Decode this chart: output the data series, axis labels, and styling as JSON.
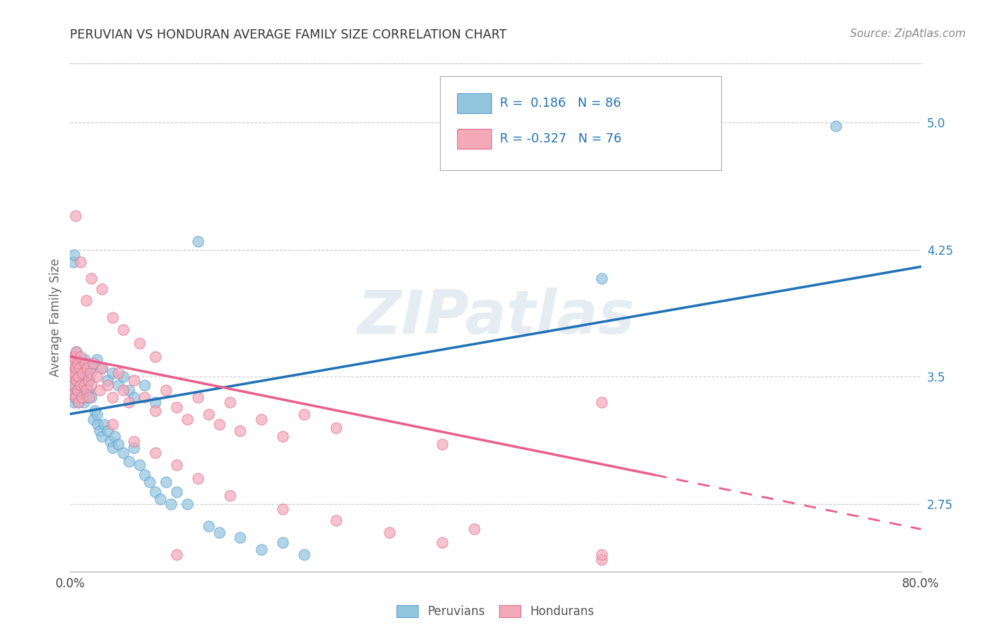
{
  "title": "PERUVIAN VS HONDURAN AVERAGE FAMILY SIZE CORRELATION CHART",
  "source": "Source: ZipAtlas.com",
  "ylabel": "Average Family Size",
  "yticks": [
    2.75,
    3.5,
    4.25,
    5.0
  ],
  "xlim": [
    0.0,
    0.8
  ],
  "ylim": [
    2.35,
    5.35
  ],
  "blue_color": "#92c5de",
  "blue_edge": "#5b9bd5",
  "pink_color": "#f4a9b8",
  "pink_edge": "#e07090",
  "watermark": "ZIPatlas",
  "blue_scatter": [
    [
      0.001,
      3.46
    ],
    [
      0.001,
      3.52
    ],
    [
      0.002,
      3.42
    ],
    [
      0.002,
      3.55
    ],
    [
      0.002,
      3.38
    ],
    [
      0.003,
      3.48
    ],
    [
      0.003,
      3.44
    ],
    [
      0.003,
      3.6
    ],
    [
      0.004,
      3.5
    ],
    [
      0.004,
      3.35
    ],
    [
      0.004,
      3.62
    ],
    [
      0.005,
      3.45
    ],
    [
      0.005,
      3.55
    ],
    [
      0.005,
      3.4
    ],
    [
      0.006,
      3.52
    ],
    [
      0.006,
      3.38
    ],
    [
      0.006,
      3.65
    ],
    [
      0.007,
      3.48
    ],
    [
      0.007,
      3.42
    ],
    [
      0.008,
      3.55
    ],
    [
      0.008,
      3.35
    ],
    [
      0.009,
      3.5
    ],
    [
      0.009,
      3.4
    ],
    [
      0.01,
      3.45
    ],
    [
      0.01,
      3.58
    ],
    [
      0.011,
      3.38
    ],
    [
      0.011,
      3.52
    ],
    [
      0.012,
      3.48
    ],
    [
      0.012,
      3.42
    ],
    [
      0.013,
      3.55
    ],
    [
      0.013,
      3.35
    ],
    [
      0.014,
      3.6
    ],
    [
      0.015,
      3.45
    ],
    [
      0.015,
      3.38
    ],
    [
      0.016,
      3.52
    ],
    [
      0.017,
      3.42
    ],
    [
      0.018,
      3.48
    ],
    [
      0.019,
      3.55
    ],
    [
      0.02,
      3.38
    ],
    [
      0.022,
      3.25
    ],
    [
      0.023,
      3.3
    ],
    [
      0.025,
      3.28
    ],
    [
      0.026,
      3.22
    ],
    [
      0.028,
      3.18
    ],
    [
      0.03,
      3.15
    ],
    [
      0.032,
      3.22
    ],
    [
      0.035,
      3.18
    ],
    [
      0.038,
      3.12
    ],
    [
      0.04,
      3.08
    ],
    [
      0.042,
      3.15
    ],
    [
      0.045,
      3.1
    ],
    [
      0.05,
      3.05
    ],
    [
      0.055,
      3.0
    ],
    [
      0.06,
      3.08
    ],
    [
      0.065,
      2.98
    ],
    [
      0.07,
      2.92
    ],
    [
      0.075,
      2.88
    ],
    [
      0.08,
      2.82
    ],
    [
      0.085,
      2.78
    ],
    [
      0.09,
      2.88
    ],
    [
      0.095,
      2.75
    ],
    [
      0.1,
      2.82
    ],
    [
      0.11,
      2.75
    ],
    [
      0.025,
      3.6
    ],
    [
      0.03,
      3.55
    ],
    [
      0.035,
      3.48
    ],
    [
      0.04,
      3.52
    ],
    [
      0.045,
      3.45
    ],
    [
      0.05,
      3.5
    ],
    [
      0.055,
      3.42
    ],
    [
      0.06,
      3.38
    ],
    [
      0.07,
      3.45
    ],
    [
      0.08,
      3.35
    ],
    [
      0.003,
      4.18
    ],
    [
      0.004,
      4.22
    ],
    [
      0.12,
      4.3
    ],
    [
      0.5,
      4.08
    ],
    [
      0.72,
      4.98
    ],
    [
      0.16,
      2.55
    ],
    [
      0.18,
      2.48
    ],
    [
      0.2,
      2.52
    ],
    [
      0.22,
      2.45
    ],
    [
      0.13,
      2.62
    ],
    [
      0.14,
      2.58
    ]
  ],
  "pink_scatter": [
    [
      0.002,
      3.5
    ],
    [
      0.002,
      3.58
    ],
    [
      0.003,
      3.45
    ],
    [
      0.003,
      3.62
    ],
    [
      0.004,
      3.52
    ],
    [
      0.004,
      3.4
    ],
    [
      0.005,
      3.55
    ],
    [
      0.005,
      3.38
    ],
    [
      0.006,
      3.48
    ],
    [
      0.006,
      3.65
    ],
    [
      0.007,
      3.42
    ],
    [
      0.007,
      3.58
    ],
    [
      0.008,
      3.5
    ],
    [
      0.008,
      3.35
    ],
    [
      0.009,
      3.55
    ],
    [
      0.01,
      3.45
    ],
    [
      0.01,
      3.62
    ],
    [
      0.011,
      3.38
    ],
    [
      0.012,
      3.52
    ],
    [
      0.013,
      3.45
    ],
    [
      0.014,
      3.58
    ],
    [
      0.015,
      3.42
    ],
    [
      0.016,
      3.55
    ],
    [
      0.017,
      3.48
    ],
    [
      0.018,
      3.38
    ],
    [
      0.019,
      3.52
    ],
    [
      0.02,
      3.45
    ],
    [
      0.022,
      3.58
    ],
    [
      0.025,
      3.5
    ],
    [
      0.028,
      3.42
    ],
    [
      0.03,
      3.55
    ],
    [
      0.035,
      3.45
    ],
    [
      0.04,
      3.38
    ],
    [
      0.045,
      3.52
    ],
    [
      0.05,
      3.42
    ],
    [
      0.055,
      3.35
    ],
    [
      0.06,
      3.48
    ],
    [
      0.07,
      3.38
    ],
    [
      0.08,
      3.3
    ],
    [
      0.09,
      3.42
    ],
    [
      0.1,
      3.32
    ],
    [
      0.11,
      3.25
    ],
    [
      0.12,
      3.38
    ],
    [
      0.13,
      3.28
    ],
    [
      0.14,
      3.22
    ],
    [
      0.15,
      3.35
    ],
    [
      0.16,
      3.18
    ],
    [
      0.18,
      3.25
    ],
    [
      0.2,
      3.15
    ],
    [
      0.22,
      3.28
    ],
    [
      0.005,
      4.45
    ],
    [
      0.01,
      4.18
    ],
    [
      0.02,
      4.08
    ],
    [
      0.03,
      4.02
    ],
    [
      0.015,
      3.95
    ],
    [
      0.04,
      3.85
    ],
    [
      0.05,
      3.78
    ],
    [
      0.065,
      3.7
    ],
    [
      0.08,
      3.62
    ],
    [
      0.04,
      3.22
    ],
    [
      0.06,
      3.12
    ],
    [
      0.08,
      3.05
    ],
    [
      0.1,
      2.98
    ],
    [
      0.12,
      2.9
    ],
    [
      0.15,
      2.8
    ],
    [
      0.2,
      2.72
    ],
    [
      0.25,
      2.65
    ],
    [
      0.3,
      2.58
    ],
    [
      0.35,
      2.52
    ],
    [
      0.25,
      3.2
    ],
    [
      0.35,
      3.1
    ],
    [
      0.5,
      2.42
    ],
    [
      0.5,
      2.45
    ],
    [
      0.38,
      2.6
    ],
    [
      0.5,
      3.35
    ],
    [
      0.1,
      2.45
    ]
  ],
  "blue_line": {
    "x0": 0.0,
    "y0": 3.28,
    "x1": 0.8,
    "y1": 4.15
  },
  "pink_line": {
    "x0": 0.0,
    "y0": 3.62,
    "x1": 0.55,
    "y1": 2.92
  },
  "pink_line_dash": {
    "x0": 0.55,
    "y0": 2.92,
    "x1": 0.8,
    "y1": 2.6
  }
}
